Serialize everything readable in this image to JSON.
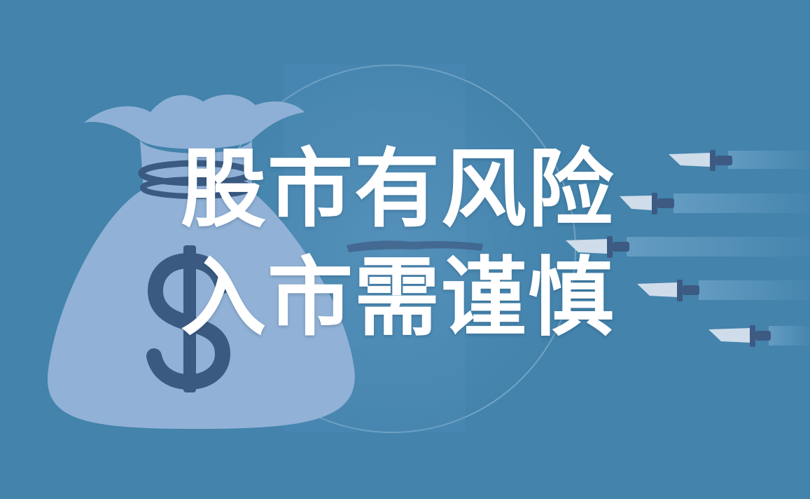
{
  "colors": {
    "background": "#4383ac",
    "bag_fill": "#91b1d6",
    "bag_tie": "#3a5a82",
    "dollar_sign": "#3a5a82",
    "knife_blade": "#cfdcea",
    "knife_handle": "#3d5a82",
    "text": "#ffffff"
  },
  "illustration": {
    "bag": "money-bag-icon",
    "symbol": "$",
    "knives": 5
  },
  "headline": {
    "line1": "股市有风险",
    "line2": "入市需谨慎"
  }
}
